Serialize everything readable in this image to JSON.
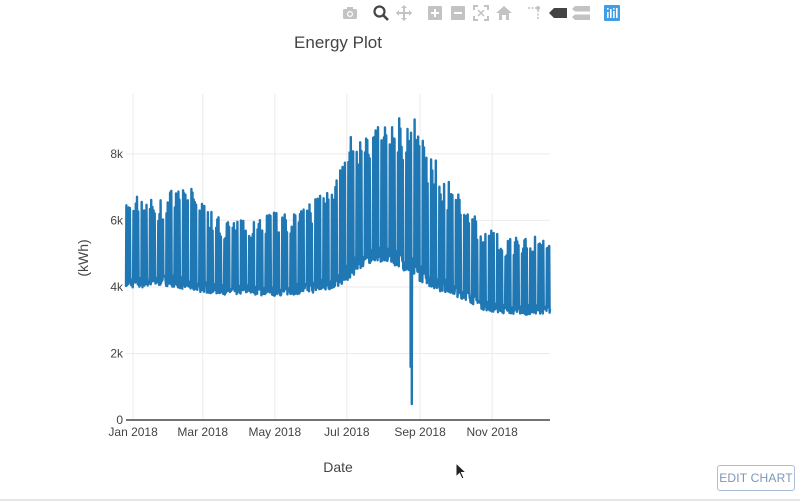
{
  "modebar": {
    "buttons": [
      {
        "name": "camera-icon",
        "color": "#c3c3c3"
      },
      {
        "name": "zoom-icon",
        "color": "#444444"
      },
      {
        "name": "pan-icon",
        "color": "#c3c3c3"
      },
      {
        "name": "zoom-in-icon",
        "color": "#c3c3c3"
      },
      {
        "name": "zoom-out-icon",
        "color": "#c3c3c3"
      },
      {
        "name": "autoscale-icon",
        "color": "#c3c3c3"
      },
      {
        "name": "reset-axes-icon",
        "color": "#c3c3c3"
      },
      {
        "name": "spike-lines-icon",
        "color": "#c3c3c3"
      },
      {
        "name": "hover-closest-icon",
        "color": "#444444"
      },
      {
        "name": "hover-compare-icon",
        "color": "#c3c3c3"
      },
      {
        "name": "plotly-logo-icon",
        "color": "#3f9ee8"
      }
    ]
  },
  "edit_chart_label": "EDIT CHART",
  "chart_data": {
    "type": "line",
    "title": "Energy Plot",
    "xlabel": "Date",
    "ylabel": "(kWh)",
    "x_range": [
      "2017-12-26",
      "2018-12-20"
    ],
    "ylim": [
      0,
      9800
    ],
    "grid": true,
    "x_ticks": [
      "Jan 2018",
      "Mar 2018",
      "May 2018",
      "Jul 2018",
      "Sep 2018",
      "Nov 2018"
    ],
    "y_ticks": [
      "0",
      "2k",
      "4k",
      "6k",
      "8k"
    ],
    "line_color": "#1f77b4",
    "series": [
      {
        "x": [
          "2017-12-26",
          "2018-01-05",
          "2018-01-15",
          "2018-01-25",
          "2018-02-05",
          "2018-02-15",
          "2018-02-25",
          "2018-03-10",
          "2018-03-25",
          "2018-04-10",
          "2018-04-25",
          "2018-05-10",
          "2018-05-25",
          "2018-06-10",
          "2018-06-25",
          "2018-07-05",
          "2018-07-15",
          "2018-07-25",
          "2018-08-05",
          "2018-08-15",
          "2018-08-20",
          "2018-08-25",
          "2018-09-05",
          "2018-09-15",
          "2018-09-25",
          "2018-10-10",
          "2018-10-25",
          "2018-11-10",
          "2018-11-25",
          "2018-12-10",
          "2018-12-20"
        ],
        "peak": [
          6500,
          6800,
          6700,
          6600,
          7100,
          7000,
          6900,
          6200,
          6000,
          6100,
          6300,
          6200,
          6400,
          7000,
          7500,
          8600,
          8500,
          8800,
          8900,
          9200,
          9000,
          9300,
          8300,
          7800,
          7200,
          6500,
          5900,
          5500,
          5600,
          5500,
          5300
        ],
        "base": [
          4000,
          3950,
          4000,
          4050,
          4000,
          3900,
          3850,
          3800,
          3750,
          3800,
          3700,
          3750,
          3800,
          3850,
          4000,
          4300,
          4600,
          4800,
          4700,
          4600,
          4400,
          4300,
          4100,
          3900,
          3800,
          3600,
          3300,
          3200,
          3150,
          3200,
          3200
        ],
        "dips": [
          {
            "x": "2018-08-24",
            "y": 1600
          },
          {
            "x": "2018-08-25",
            "y": 480
          }
        ]
      }
    ]
  }
}
